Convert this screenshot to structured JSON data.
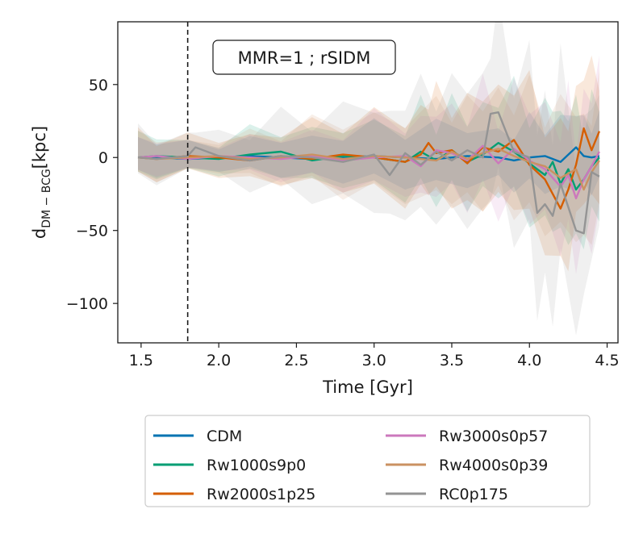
{
  "chart_data": {
    "type": "line",
    "annotation": "MMR=1 ; rSIDM",
    "xlabel": "Time [Gyr]",
    "ylabel_main": "d",
    "ylabel_sub": "DM − BCG",
    "ylabel_unit": "[kpc]",
    "xlim": [
      1.35,
      4.57
    ],
    "ylim": [
      -127,
      93
    ],
    "xticks": [
      1.5,
      2.0,
      2.5,
      3.0,
      3.5,
      4.0,
      4.5
    ],
    "xtick_labels": [
      "1.5",
      "2.0",
      "2.5",
      "3.0",
      "3.5",
      "4.0",
      "4.5"
    ],
    "yticks": [
      50,
      0,
      -50,
      -100
    ],
    "ytick_labels": [
      "50",
      "0",
      "−50",
      "−100"
    ],
    "vline_x": 1.8,
    "legend_position": "below",
    "series": [
      {
        "name": "CDM",
        "color": "#0173b2",
        "t": [
          1.48,
          1.6,
          1.8,
          2.0,
          2.2,
          2.4,
          2.6,
          2.8,
          3.0,
          3.2,
          3.4,
          3.6,
          3.8,
          3.9,
          4.0,
          4.1,
          4.2,
          4.3,
          4.35,
          4.4,
          4.45
        ],
        "y": [
          0,
          0,
          -1,
          0,
          1,
          0,
          -1,
          0,
          1,
          0,
          -1,
          1,
          0,
          -2,
          0,
          1,
          -3,
          7,
          1,
          0,
          1
        ],
        "spread": [
          14,
          14,
          10,
          10,
          12,
          14,
          16,
          18,
          20,
          22,
          24,
          22,
          20,
          22,
          24,
          26,
          28,
          30,
          28,
          26,
          24
        ]
      },
      {
        "name": "Rw1000s9p0",
        "color": "#029e73",
        "t": [
          1.48,
          1.6,
          1.8,
          2.0,
          2.2,
          2.4,
          2.6,
          2.8,
          3.0,
          3.2,
          3.3,
          3.4,
          3.5,
          3.6,
          3.7,
          3.8,
          3.9,
          4.0,
          4.1,
          4.15,
          4.2,
          4.25,
          4.3,
          4.35,
          4.4,
          4.45
        ],
        "y": [
          0,
          1,
          0,
          -1,
          2,
          4,
          -2,
          1,
          0,
          -3,
          4,
          -2,
          5,
          -3,
          2,
          10,
          4,
          -4,
          -12,
          -3,
          -18,
          -8,
          -22,
          -15,
          -6,
          0
        ],
        "spread": [
          16,
          16,
          12,
          12,
          16,
          18,
          20,
          22,
          26,
          28,
          30,
          32,
          34,
          34,
          36,
          38,
          40,
          44,
          46,
          48,
          50,
          52,
          50,
          48,
          46,
          44
        ]
      },
      {
        "name": "Rw2000s1p25",
        "color": "#d55e00",
        "t": [
          1.48,
          1.6,
          1.8,
          2.0,
          2.2,
          2.4,
          2.6,
          2.8,
          3.0,
          3.2,
          3.3,
          3.35,
          3.4,
          3.5,
          3.6,
          3.7,
          3.8,
          3.9,
          4.0,
          4.1,
          4.2,
          4.25,
          4.3,
          4.35,
          4.4,
          4.45
        ],
        "y": [
          0,
          -1,
          1,
          0,
          -2,
          1,
          -1,
          2,
          0,
          -3,
          2,
          10,
          3,
          5,
          -4,
          7,
          4,
          12,
          -5,
          -15,
          -35,
          -22,
          -5,
          20,
          5,
          18
        ],
        "spread": [
          16,
          16,
          14,
          14,
          18,
          20,
          22,
          26,
          30,
          32,
          34,
          36,
          38,
          40,
          42,
          44,
          46,
          48,
          50,
          52,
          54,
          56,
          54,
          52,
          50,
          50
        ]
      },
      {
        "name": "Rw3000s0p57",
        "color": "#cc78bc",
        "t": [
          1.48,
          1.6,
          1.8,
          2.0,
          2.2,
          2.4,
          2.6,
          2.8,
          3.0,
          3.2,
          3.3,
          3.4,
          3.5,
          3.6,
          3.7,
          3.8,
          3.9,
          4.0,
          4.1,
          4.2,
          4.25,
          4.3,
          4.35,
          4.4,
          4.45
        ],
        "y": [
          0,
          1,
          -1,
          1,
          0,
          -1,
          1,
          -2,
          0,
          1,
          -6,
          5,
          3,
          -2,
          8,
          -4,
          6,
          -2,
          -8,
          -20,
          -12,
          -28,
          -15,
          -6,
          4
        ],
        "spread": [
          14,
          14,
          10,
          10,
          14,
          16,
          18,
          22,
          26,
          28,
          30,
          32,
          34,
          36,
          38,
          40,
          42,
          44,
          46,
          48,
          50,
          52,
          54,
          60,
          66
        ]
      },
      {
        "name": "Rw4000s0p39",
        "color": "#ca9161",
        "t": [
          1.48,
          1.6,
          1.8,
          2.0,
          2.2,
          2.4,
          2.6,
          2.8,
          3.0,
          3.2,
          3.4,
          3.5,
          3.6,
          3.7,
          3.8,
          3.9,
          4.0,
          4.1,
          4.2,
          4.3,
          4.35,
          4.4,
          4.45
        ],
        "y": [
          0,
          -1,
          0,
          1,
          -1,
          0,
          2,
          -1,
          1,
          0,
          -2,
          4,
          -1,
          3,
          6,
          1,
          -3,
          -6,
          -14,
          -8,
          -22,
          -10,
          -2
        ],
        "spread": [
          16,
          16,
          12,
          12,
          16,
          20,
          24,
          28,
          30,
          32,
          34,
          36,
          38,
          40,
          42,
          44,
          46,
          48,
          50,
          50,
          52,
          50,
          48
        ]
      },
      {
        "name": "RC0p175",
        "color": "#949494",
        "t": [
          1.48,
          1.6,
          1.8,
          1.85,
          2.0,
          2.2,
          2.4,
          2.6,
          2.8,
          3.0,
          3.1,
          3.2,
          3.3,
          3.4,
          3.5,
          3.6,
          3.7,
          3.75,
          3.8,
          3.9,
          4.0,
          4.05,
          4.1,
          4.15,
          4.2,
          4.3,
          4.35,
          4.4,
          4.45
        ],
        "y": [
          0,
          -1,
          1,
          7,
          1,
          -2,
          1,
          0,
          -3,
          2,
          -12,
          3,
          -5,
          4,
          -2,
          5,
          0,
          30,
          31,
          4,
          0,
          -38,
          -32,
          -40,
          -18,
          -50,
          -52,
          -10,
          -13
        ],
        "spread": [
          18,
          18,
          14,
          14,
          18,
          22,
          26,
          32,
          36,
          40,
          44,
          46,
          48,
          50,
          52,
          54,
          58,
          60,
          62,
          66,
          70,
          74,
          78,
          76,
          74,
          72,
          70,
          60,
          56
        ]
      }
    ]
  }
}
